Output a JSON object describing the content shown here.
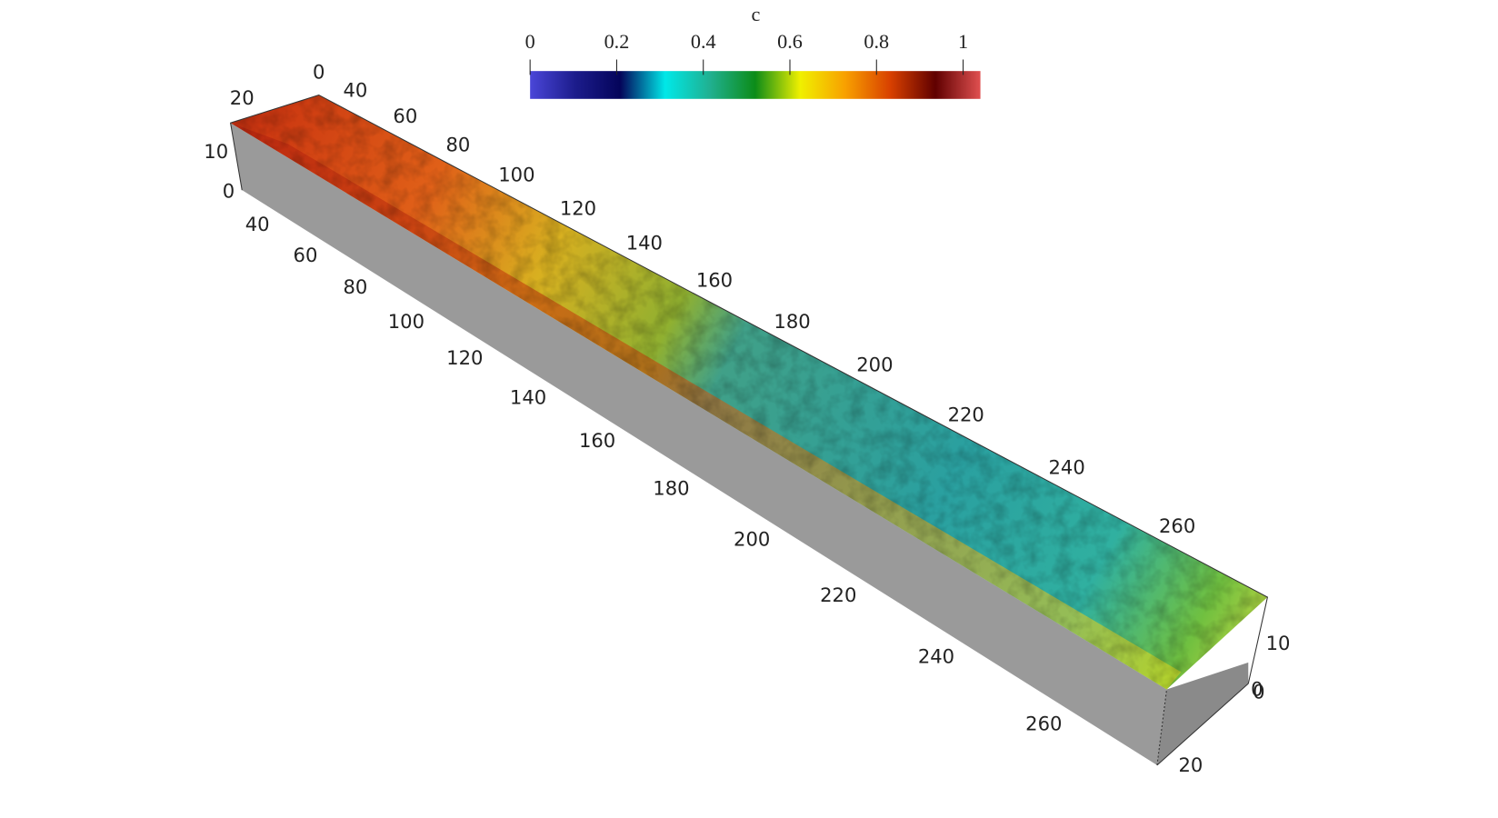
{
  "colorbar": {
    "title": "c",
    "range": [
      0,
      1
    ],
    "ticks": [
      0,
      0.2,
      0.4,
      0.6,
      0.8,
      1
    ]
  },
  "axes": {
    "x_far": [
      0,
      40,
      60,
      80,
      100,
      120,
      140,
      160,
      180,
      200,
      220,
      240,
      260
    ],
    "x_near": [
      40,
      60,
      80,
      100,
      120,
      140,
      160,
      180,
      200,
      220,
      240,
      260
    ],
    "z_left": [
      10,
      0
    ],
    "z_right": [
      10,
      0
    ],
    "y_left": [
      20
    ],
    "y_right": [
      0,
      20
    ]
  }
}
